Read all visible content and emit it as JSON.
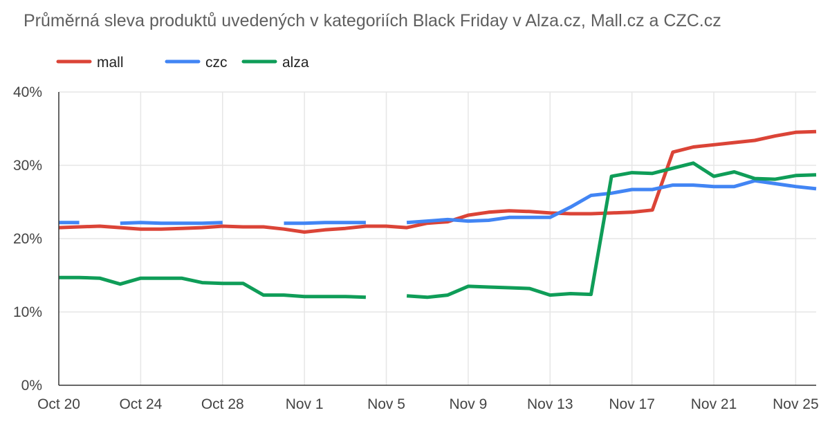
{
  "chart_data": {
    "type": "line",
    "title": "Průměrná sleva produktů uvedených v kategoriích Black Friday v Alza.cz, Mall.cz a CZC.cz",
    "xlabel": "",
    "ylabel": "",
    "ylim": [
      0,
      40
    ],
    "yticks": [
      0,
      10,
      20,
      30,
      40
    ],
    "ytick_labels": [
      "0%",
      "10%",
      "20%",
      "30%",
      "40%"
    ],
    "x_start": "2020-10-20",
    "x_end": "2020-11-26",
    "x_ticks": [
      "2020-10-20",
      "2020-10-24",
      "2020-10-28",
      "2020-11-01",
      "2020-11-05",
      "2020-11-09",
      "2020-11-13",
      "2020-11-17",
      "2020-11-21",
      "2020-11-25"
    ],
    "x_tick_labels": [
      "Oct 20",
      "Oct 24",
      "Oct 28",
      "Nov 1",
      "Nov 5",
      "Nov 9",
      "Nov 13",
      "Nov 17",
      "Nov 21",
      "Nov 25"
    ],
    "grid": true,
    "legend_position": "top-left",
    "x": [
      "2020-10-20",
      "2020-10-21",
      "2020-10-22",
      "2020-10-23",
      "2020-10-24",
      "2020-10-25",
      "2020-10-26",
      "2020-10-27",
      "2020-10-28",
      "2020-10-29",
      "2020-10-30",
      "2020-10-31",
      "2020-11-01",
      "2020-11-02",
      "2020-11-03",
      "2020-11-04",
      "2020-11-05",
      "2020-11-06",
      "2020-11-07",
      "2020-11-08",
      "2020-11-09",
      "2020-11-10",
      "2020-11-11",
      "2020-11-12",
      "2020-11-13",
      "2020-11-14",
      "2020-11-15",
      "2020-11-16",
      "2020-11-17",
      "2020-11-18",
      "2020-11-19",
      "2020-11-20",
      "2020-11-21",
      "2020-11-22",
      "2020-11-23",
      "2020-11-24",
      "2020-11-25",
      "2020-11-26"
    ],
    "series": [
      {
        "name": "mall",
        "color": "#db4437",
        "values": [
          21.5,
          21.6,
          21.7,
          21.5,
          21.3,
          21.3,
          21.4,
          21.5,
          21.7,
          21.6,
          21.6,
          21.3,
          20.9,
          21.2,
          21.4,
          21.7,
          21.7,
          21.5,
          22.1,
          22.3,
          23.2,
          23.6,
          23.8,
          23.7,
          23.5,
          23.4,
          23.4,
          23.5,
          23.6,
          23.9,
          31.8,
          32.5,
          32.8,
          33.1,
          33.4,
          34.0,
          34.5,
          34.6
        ]
      },
      {
        "name": "czc",
        "color": "#4285f4",
        "values": [
          22.2,
          22.2,
          null,
          22.1,
          22.2,
          22.1,
          22.1,
          22.1,
          22.2,
          null,
          null,
          22.1,
          22.1,
          22.2,
          22.2,
          22.2,
          null,
          22.2,
          22.4,
          22.6,
          22.4,
          22.5,
          22.9,
          22.9,
          22.9,
          24.3,
          25.9,
          26.2,
          26.7,
          26.7,
          27.3,
          27.3,
          27.1,
          27.1,
          27.9,
          27.5,
          27.1,
          26.8
        ]
      },
      {
        "name": "alza",
        "color": "#0f9d58",
        "values": [
          14.7,
          14.7,
          14.6,
          13.8,
          14.6,
          14.6,
          14.6,
          14.0,
          13.9,
          13.9,
          12.3,
          12.3,
          12.1,
          12.1,
          12.1,
          12.0,
          null,
          12.2,
          12.0,
          12.3,
          13.5,
          13.4,
          13.3,
          13.2,
          12.3,
          12.5,
          12.4,
          28.5,
          29.0,
          28.9,
          29.6,
          30.3,
          28.5,
          29.1,
          28.2,
          28.1,
          28.6,
          28.7
        ]
      }
    ]
  }
}
